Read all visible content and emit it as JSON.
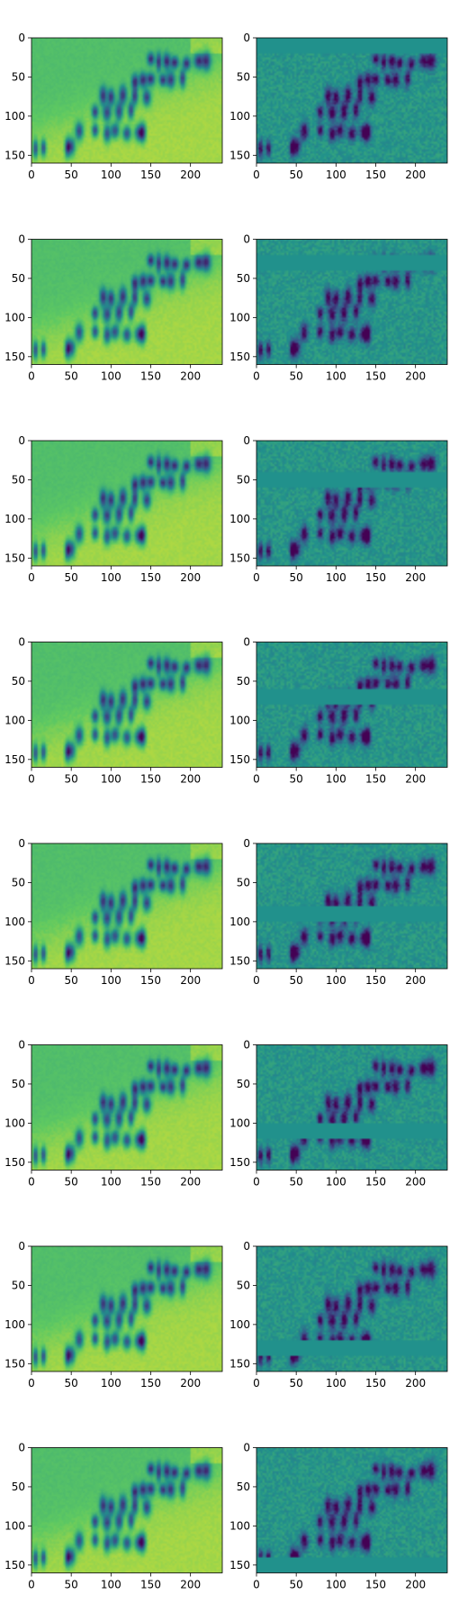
{
  "figure": {
    "rows": 8,
    "cols": 2,
    "colormap": [
      "#440154",
      "#3b528b",
      "#21918c",
      "#5ec962",
      "#fde725"
    ]
  },
  "chart_data": [
    {
      "type": "heatmap",
      "panel": "row1-left",
      "image_kind": "smooth-reconstruction",
      "masked_rows": [],
      "xlim": [
        0,
        240
      ],
      "ylim": [
        160,
        0
      ],
      "xticks": [
        0,
        50,
        100,
        150,
        200
      ],
      "yticks": [
        0,
        50,
        100,
        150
      ]
    },
    {
      "type": "heatmap",
      "panel": "row1-right",
      "image_kind": "detail",
      "masked_rows": [
        0,
        20
      ],
      "xlim": [
        0,
        240
      ],
      "ylim": [
        160,
        0
      ],
      "xticks": [
        0,
        50,
        100,
        150,
        200
      ],
      "yticks": [
        0,
        50,
        100,
        150
      ]
    },
    {
      "type": "heatmap",
      "panel": "row2-left",
      "image_kind": "smooth-reconstruction",
      "masked_rows": [],
      "xlim": [
        0,
        240
      ],
      "ylim": [
        160,
        0
      ],
      "xticks": [
        0,
        50,
        100,
        150,
        200
      ],
      "yticks": [
        0,
        50,
        100,
        150
      ]
    },
    {
      "type": "heatmap",
      "panel": "row2-right",
      "image_kind": "detail",
      "masked_rows": [
        20,
        40
      ],
      "xlim": [
        0,
        240
      ],
      "ylim": [
        160,
        0
      ],
      "xticks": [
        0,
        50,
        100,
        150,
        200
      ],
      "yticks": [
        0,
        50,
        100,
        150
      ]
    },
    {
      "type": "heatmap",
      "panel": "row3-left",
      "image_kind": "smooth-reconstruction",
      "masked_rows": [],
      "xlim": [
        0,
        240
      ],
      "ylim": [
        160,
        0
      ],
      "xticks": [
        0,
        50,
        100,
        150,
        200
      ],
      "yticks": [
        0,
        50,
        100,
        150
      ]
    },
    {
      "type": "heatmap",
      "panel": "row3-right",
      "image_kind": "detail",
      "masked_rows": [
        40,
        60
      ],
      "xlim": [
        0,
        240
      ],
      "ylim": [
        160,
        0
      ],
      "xticks": [
        0,
        50,
        100,
        150,
        200
      ],
      "yticks": [
        0,
        50,
        100,
        150
      ]
    },
    {
      "type": "heatmap",
      "panel": "row4-left",
      "image_kind": "smooth-reconstruction",
      "masked_rows": [],
      "xlim": [
        0,
        240
      ],
      "ylim": [
        160,
        0
      ],
      "xticks": [
        0,
        50,
        100,
        150,
        200
      ],
      "yticks": [
        0,
        50,
        100,
        150
      ]
    },
    {
      "type": "heatmap",
      "panel": "row4-right",
      "image_kind": "detail",
      "masked_rows": [
        60,
        80
      ],
      "xlim": [
        0,
        240
      ],
      "ylim": [
        160,
        0
      ],
      "xticks": [
        0,
        50,
        100,
        150,
        200
      ],
      "yticks": [
        0,
        50,
        100,
        150
      ]
    },
    {
      "type": "heatmap",
      "panel": "row5-left",
      "image_kind": "smooth-reconstruction",
      "masked_rows": [],
      "xlim": [
        0,
        240
      ],
      "ylim": [
        160,
        0
      ],
      "xticks": [
        0,
        50,
        100,
        150,
        200
      ],
      "yticks": [
        0,
        50,
        100,
        150
      ]
    },
    {
      "type": "heatmap",
      "panel": "row5-right",
      "image_kind": "detail",
      "masked_rows": [
        80,
        100
      ],
      "xlim": [
        0,
        240
      ],
      "ylim": [
        160,
        0
      ],
      "xticks": [
        0,
        50,
        100,
        150,
        200
      ],
      "yticks": [
        0,
        50,
        100,
        150
      ]
    },
    {
      "type": "heatmap",
      "panel": "row6-left",
      "image_kind": "smooth-reconstruction",
      "masked_rows": [],
      "xlim": [
        0,
        240
      ],
      "ylim": [
        160,
        0
      ],
      "xticks": [
        0,
        50,
        100,
        150,
        200
      ],
      "yticks": [
        0,
        50,
        100,
        150
      ]
    },
    {
      "type": "heatmap",
      "panel": "row6-right",
      "image_kind": "detail",
      "masked_rows": [
        100,
        120
      ],
      "xlim": [
        0,
        240
      ],
      "ylim": [
        160,
        0
      ],
      "xticks": [
        0,
        50,
        100,
        150,
        200
      ],
      "yticks": [
        0,
        50,
        100,
        150
      ]
    },
    {
      "type": "heatmap",
      "panel": "row7-left",
      "image_kind": "smooth-reconstruction",
      "masked_rows": [],
      "xlim": [
        0,
        240
      ],
      "ylim": [
        160,
        0
      ],
      "xticks": [
        0,
        50,
        100,
        150,
        200
      ],
      "yticks": [
        0,
        50,
        100,
        150
      ]
    },
    {
      "type": "heatmap",
      "panel": "row7-right",
      "image_kind": "detail",
      "masked_rows": [
        120,
        140
      ],
      "xlim": [
        0,
        240
      ],
      "ylim": [
        160,
        0
      ],
      "xticks": [
        0,
        50,
        100,
        150,
        200
      ],
      "yticks": [
        0,
        50,
        100,
        150
      ]
    },
    {
      "type": "heatmap",
      "panel": "row8-left",
      "image_kind": "smooth-reconstruction",
      "masked_rows": [],
      "xlim": [
        0,
        240
      ],
      "ylim": [
        160,
        0
      ],
      "xticks": [
        0,
        50,
        100,
        150,
        200
      ],
      "yticks": [
        0,
        50,
        100,
        150
      ]
    },
    {
      "type": "heatmap",
      "panel": "row8-right",
      "image_kind": "detail",
      "masked_rows": [
        140,
        160
      ],
      "xlim": [
        0,
        240
      ],
      "ylim": [
        160,
        0
      ],
      "xticks": [
        0,
        50,
        100,
        150,
        200
      ],
      "yticks": [
        0,
        50,
        100,
        150
      ]
    }
  ]
}
